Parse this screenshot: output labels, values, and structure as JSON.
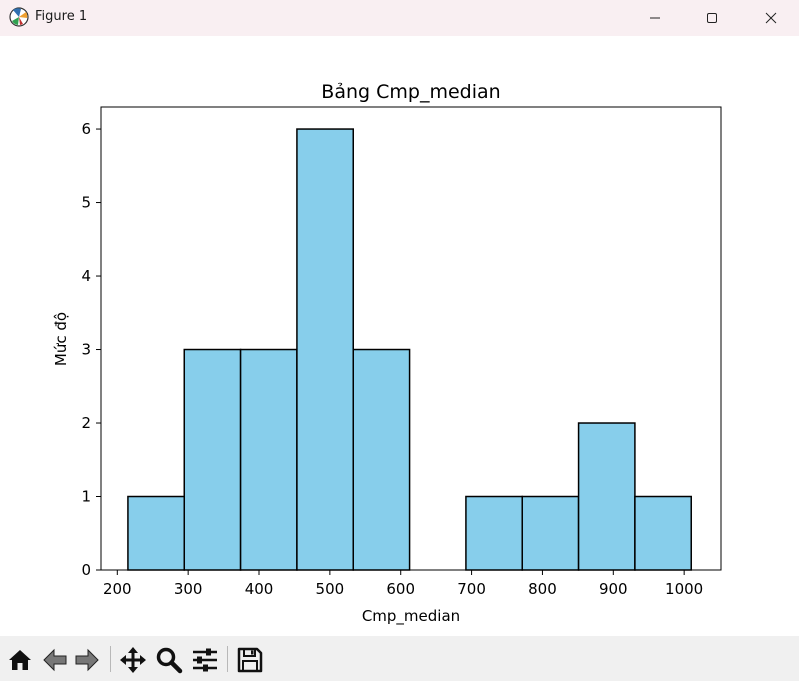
{
  "window": {
    "title": "Figure 1",
    "app_icon": "matplotlib-icon",
    "controls": [
      "minimize-icon",
      "maximize-icon",
      "close-icon"
    ]
  },
  "toolbar": {
    "tools": [
      "home-icon",
      "back-arrow-icon",
      "forward-arrow-icon",
      "pan-move-icon",
      "zoom-magnifier-icon",
      "configure-subplots-icon",
      "save-floppy-icon"
    ]
  },
  "chart_data": {
    "type": "bar",
    "title": "Bảng Cmp_median",
    "xlabel": "Cmp_median",
    "ylabel": "Mức độ",
    "bin_edges": [
      215,
      294.5,
      374,
      453.5,
      533,
      612.5,
      692,
      771.5,
      851,
      930.5,
      1010
    ],
    "values": [
      1,
      3,
      3,
      6,
      3,
      0,
      1,
      1,
      2,
      1
    ],
    "xlim": [
      177,
      1052
    ],
    "ylim": [
      0,
      6.3
    ],
    "xticks": [
      200,
      300,
      400,
      500,
      600,
      700,
      800,
      900,
      1000
    ],
    "yticks": [
      0,
      1,
      2,
      3,
      4,
      5,
      6
    ],
    "bar_color": "#87ceeb",
    "edge_color": "#000000",
    "grid": false
  }
}
